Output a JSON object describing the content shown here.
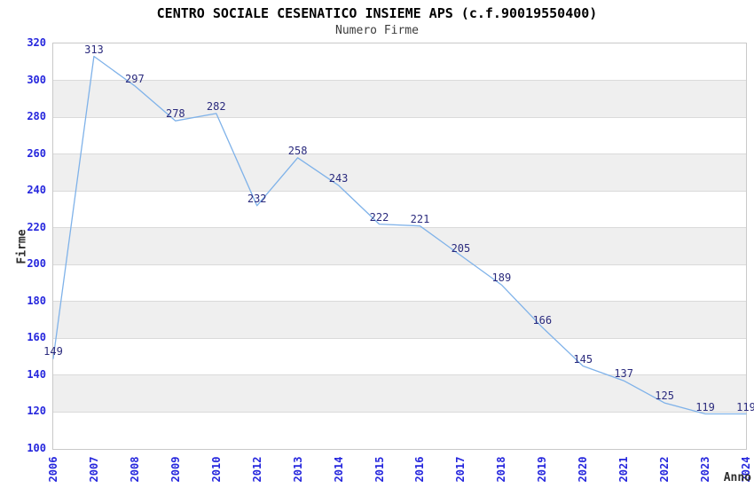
{
  "chart_data": {
    "type": "line",
    "title": "CENTRO SOCIALE CESENATICO INSIEME APS (c.f.90019550400)",
    "subtitle": "Numero Firme",
    "xlabel": "Anno",
    "ylabel": "Firme",
    "categories": [
      "2006",
      "2007",
      "2008",
      "2009",
      "2010",
      "2012",
      "2013",
      "2014",
      "2015",
      "2016",
      "2017",
      "2018",
      "2019",
      "2020",
      "2021",
      "2022",
      "2023",
      "2024"
    ],
    "values": [
      149,
      313,
      297,
      278,
      282,
      232,
      258,
      243,
      222,
      221,
      205,
      189,
      166,
      145,
      137,
      125,
      119,
      119
    ],
    "ylim": [
      100,
      320
    ],
    "ytick_step": 20,
    "legend": "none",
    "grid": "horizontal-gridlines-with-alternating-bands",
    "colors": {
      "line": "#7fb2e9",
      "tick_labels": "#2526dd",
      "data_labels": "#2a2a7d",
      "band": "#efefef",
      "gridline": "#dadada",
      "plot_border": "#c9c9c9",
      "title": "#000000",
      "subtitle": "#3c3c3c",
      "axis_titles": "#2e2e2e",
      "background": "#ffffff"
    }
  }
}
